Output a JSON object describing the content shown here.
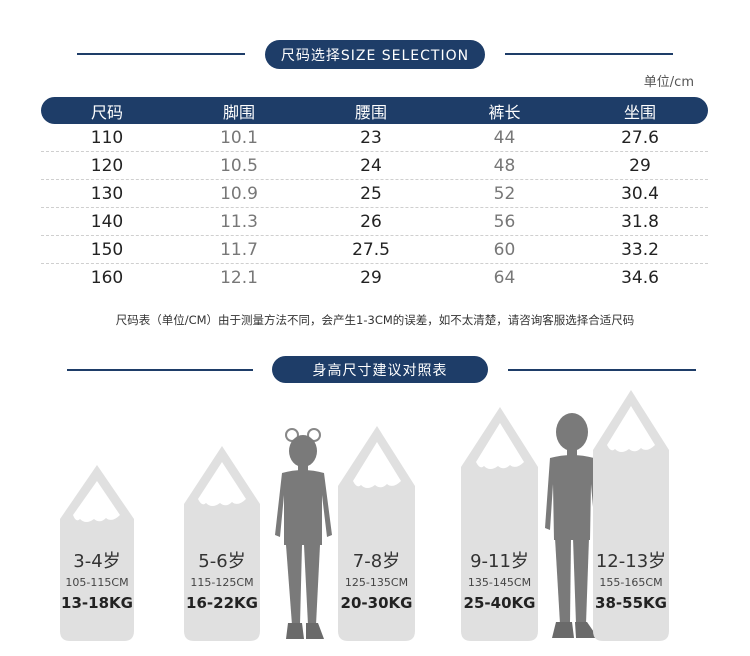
{
  "size_section": {
    "title": "尺码选择SIZE SELECTION",
    "unit": "单位/cm",
    "headers": [
      "尺码",
      "脚围",
      "腰围",
      "裤长",
      "坐围"
    ],
    "rows": [
      [
        "110",
        "10.1",
        "23",
        "44",
        "27.6"
      ],
      [
        "120",
        "10.5",
        "24",
        "48",
        "29"
      ],
      [
        "130",
        "10.9",
        "25",
        "52",
        "30.4"
      ],
      [
        "140",
        "11.3",
        "26",
        "56",
        "31.8"
      ],
      [
        "150",
        "11.7",
        "27.5",
        "60",
        "33.2"
      ],
      [
        "160",
        "12.1",
        "29",
        "64",
        "34.6"
      ]
    ],
    "note": "尺码表（单位/CM）由于测量方法不同，会产生1-3CM的误差，如不太清楚，请咨询客服选择合适尺码"
  },
  "height_section": {
    "title": "身高尺寸建议对照表",
    "columns": [
      {
        "age": "3-4岁",
        "height": "105-115CM",
        "weight": "13-18KG"
      },
      {
        "age": "5-6岁",
        "height": "115-125CM",
        "weight": "16-22KG"
      },
      {
        "age": "7-8岁",
        "height": "125-135CM",
        "weight": "20-30KG"
      },
      {
        "age": "9-11岁",
        "height": "135-145CM",
        "weight": "25-40KG"
      },
      {
        "age": "12-13岁",
        "height": "155-165CM",
        "weight": "38-55KG"
      }
    ]
  },
  "colors": {
    "accent": "#1e3d68",
    "pencil": "#e0e0e0",
    "silhouette": "#7a7a7a"
  },
  "icons": [
    "girl-silhouette",
    "boy-silhouette",
    "pencil-shape"
  ]
}
